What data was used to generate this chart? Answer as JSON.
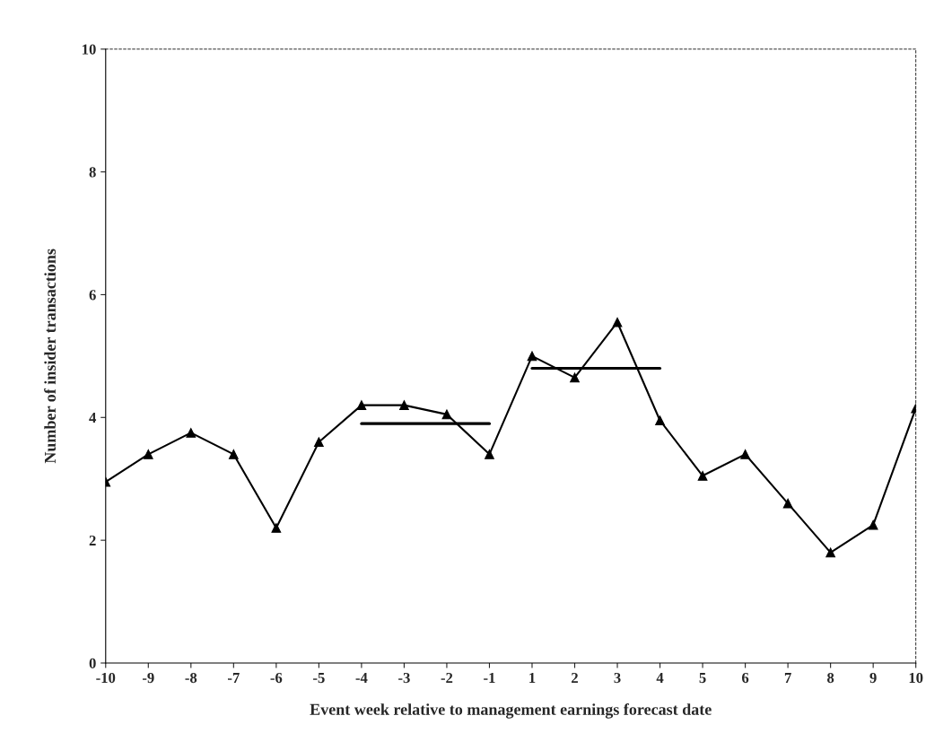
{
  "chart_data": {
    "type": "line",
    "xlabel": "Event week relative to management earnings forecast date",
    "ylabel": "Number of insider transactions",
    "categories": [
      "-10",
      "-9",
      "-8",
      "-7",
      "-6",
      "-5",
      "-4",
      "-3",
      "-2",
      "-1",
      "1",
      "2",
      "3",
      "4",
      "5",
      "6",
      "7",
      "8",
      "9",
      "10"
    ],
    "series": [
      {
        "color": "#000000",
        "marker": "triangle",
        "values": [
          2.95,
          3.4,
          3.75,
          3.4,
          2.2,
          3.6,
          4.2,
          4.2,
          4.05,
          3.4,
          5.0,
          4.65,
          5.55,
          3.95,
          3.05,
          3.4,
          2.6,
          1.8,
          2.25,
          4.15
        ]
      },
      {
        "color": "#000000",
        "marker": "none",
        "values": [
          null,
          null,
          null,
          null,
          null,
          null,
          3.9,
          3.9,
          3.9,
          3.9,
          null,
          null,
          null,
          null,
          null,
          null,
          null,
          null,
          null,
          null
        ]
      },
      {
        "color": "#000000",
        "marker": "none",
        "values": [
          null,
          null,
          null,
          null,
          null,
          null,
          null,
          null,
          null,
          null,
          4.8,
          4.8,
          4.8,
          4.8,
          null,
          null,
          null,
          null,
          null,
          null
        ]
      }
    ],
    "ylim": [
      0,
      10
    ],
    "yticks": [
      0,
      2,
      4,
      6,
      8,
      10
    ],
    "grid": false,
    "line_style": "solid"
  }
}
